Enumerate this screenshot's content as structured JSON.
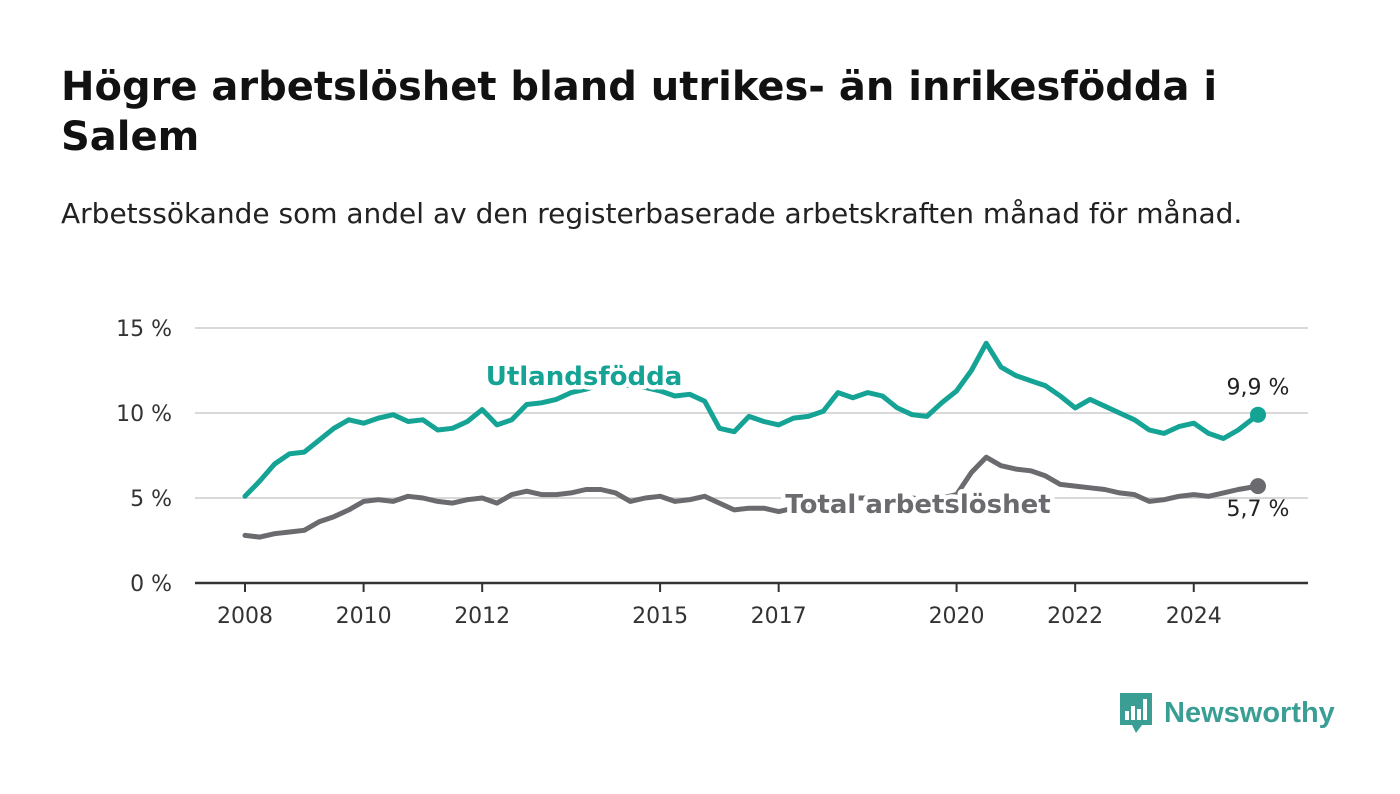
{
  "title": "Högre arbetslöshet bland utrikes- än inrikesfödda i Salem",
  "subtitle": "Arbetssökande som andel av den registerbaserade arbetskraften månad för månad.",
  "brand": {
    "name": "Newsworthy",
    "icon": "bar-chart-logo-icon",
    "color": "#3a9e94"
  },
  "colors": {
    "foreign_born": "#14a394",
    "total": "#6b6a6e",
    "grid": "#d9d9d9",
    "axis": "#333333",
    "text": "#333333"
  },
  "chart_data": {
    "type": "line",
    "xlabel": "",
    "ylabel": "",
    "ylim": [
      0,
      15
    ],
    "xlim": [
      "2007-11",
      "2025-05"
    ],
    "y_ticks": [
      0,
      5,
      10,
      15
    ],
    "y_tick_labels": [
      "0 %",
      "5 %",
      "10 %",
      "15 %"
    ],
    "x_ticks": [
      "2008-01",
      "2010-01",
      "2012-01",
      "2015-01",
      "2017-01",
      "2020-01",
      "2022-01",
      "2024-01"
    ],
    "x_tick_labels": [
      "2008",
      "2010",
      "2012",
      "2015",
      "2017",
      "2020",
      "2022",
      "2024"
    ],
    "grid": true,
    "series": [
      {
        "name": "Utlandsfödda",
        "color": "#14a394",
        "end_label": "9,9 %",
        "points": [
          [
            "2008-01",
            5.1
          ],
          [
            "2008-04",
            6.0
          ],
          [
            "2008-07",
            7.0
          ],
          [
            "2008-10",
            7.6
          ],
          [
            "2009-01",
            7.7
          ],
          [
            "2009-04",
            8.4
          ],
          [
            "2009-07",
            9.1
          ],
          [
            "2009-10",
            9.6
          ],
          [
            "2010-01",
            9.4
          ],
          [
            "2010-04",
            9.7
          ],
          [
            "2010-07",
            9.9
          ],
          [
            "2010-10",
            9.5
          ],
          [
            "2011-01",
            9.6
          ],
          [
            "2011-04",
            9.0
          ],
          [
            "2011-07",
            9.1
          ],
          [
            "2011-10",
            9.5
          ],
          [
            "2012-01",
            10.2
          ],
          [
            "2012-04",
            9.3
          ],
          [
            "2012-07",
            9.6
          ],
          [
            "2012-10",
            10.5
          ],
          [
            "2013-01",
            10.6
          ],
          [
            "2013-04",
            10.8
          ],
          [
            "2013-07",
            11.2
          ],
          [
            "2013-10",
            11.4
          ],
          [
            "2014-01",
            11.7
          ],
          [
            "2014-04",
            11.8
          ],
          [
            "2014-07",
            11.6
          ],
          [
            "2014-10",
            11.5
          ],
          [
            "2015-01",
            11.3
          ],
          [
            "2015-04",
            11.0
          ],
          [
            "2015-07",
            11.1
          ],
          [
            "2015-10",
            10.7
          ],
          [
            "2016-01",
            9.1
          ],
          [
            "2016-04",
            8.9
          ],
          [
            "2016-07",
            9.8
          ],
          [
            "2016-10",
            9.5
          ],
          [
            "2017-01",
            9.3
          ],
          [
            "2017-04",
            9.7
          ],
          [
            "2017-07",
            9.8
          ],
          [
            "2017-10",
            10.1
          ],
          [
            "2018-01",
            11.2
          ],
          [
            "2018-04",
            10.9
          ],
          [
            "2018-07",
            11.2
          ],
          [
            "2018-10",
            11.0
          ],
          [
            "2019-01",
            10.3
          ],
          [
            "2019-04",
            9.9
          ],
          [
            "2019-07",
            9.8
          ],
          [
            "2019-10",
            10.6
          ],
          [
            "2020-01",
            11.3
          ],
          [
            "2020-04",
            12.5
          ],
          [
            "2020-07",
            14.1
          ],
          [
            "2020-10",
            12.7
          ],
          [
            "2021-01",
            12.2
          ],
          [
            "2021-04",
            11.9
          ],
          [
            "2021-07",
            11.6
          ],
          [
            "2021-10",
            11.0
          ],
          [
            "2022-01",
            10.3
          ],
          [
            "2022-04",
            10.8
          ],
          [
            "2022-07",
            10.4
          ],
          [
            "2022-10",
            10.0
          ],
          [
            "2023-01",
            9.6
          ],
          [
            "2023-04",
            9.0
          ],
          [
            "2023-07",
            8.8
          ],
          [
            "2023-10",
            9.2
          ],
          [
            "2024-01",
            9.4
          ],
          [
            "2024-04",
            8.8
          ],
          [
            "2024-07",
            8.5
          ],
          [
            "2024-10",
            9.0
          ],
          [
            "2025-02",
            9.9
          ]
        ]
      },
      {
        "name": "Total arbetslöshet",
        "color": "#6b6a6e",
        "end_label": "5,7 %",
        "points": [
          [
            "2008-01",
            2.8
          ],
          [
            "2008-04",
            2.7
          ],
          [
            "2008-07",
            2.9
          ],
          [
            "2008-10",
            3.0
          ],
          [
            "2009-01",
            3.1
          ],
          [
            "2009-04",
            3.6
          ],
          [
            "2009-07",
            3.9
          ],
          [
            "2009-10",
            4.3
          ],
          [
            "2010-01",
            4.8
          ],
          [
            "2010-04",
            4.9
          ],
          [
            "2010-07",
            4.8
          ],
          [
            "2010-10",
            5.1
          ],
          [
            "2011-01",
            5.0
          ],
          [
            "2011-04",
            4.8
          ],
          [
            "2011-07",
            4.7
          ],
          [
            "2011-10",
            4.9
          ],
          [
            "2012-01",
            5.0
          ],
          [
            "2012-04",
            4.7
          ],
          [
            "2012-07",
            5.2
          ],
          [
            "2012-10",
            5.4
          ],
          [
            "2013-01",
            5.2
          ],
          [
            "2013-04",
            5.2
          ],
          [
            "2013-07",
            5.3
          ],
          [
            "2013-10",
            5.5
          ],
          [
            "2014-01",
            5.5
          ],
          [
            "2014-04",
            5.3
          ],
          [
            "2014-07",
            4.8
          ],
          [
            "2014-10",
            5.0
          ],
          [
            "2015-01",
            5.1
          ],
          [
            "2015-04",
            4.8
          ],
          [
            "2015-07",
            4.9
          ],
          [
            "2015-10",
            5.1
          ],
          [
            "2016-01",
            4.7
          ],
          [
            "2016-04",
            4.3
          ],
          [
            "2016-07",
            4.4
          ],
          [
            "2016-10",
            4.4
          ],
          [
            "2017-01",
            4.2
          ],
          [
            "2017-04",
            4.4
          ],
          [
            "2017-07",
            4.6
          ],
          [
            "2017-10",
            4.8
          ],
          [
            "2018-01",
            4.9
          ],
          [
            "2018-04",
            5.0
          ],
          [
            "2018-07",
            5.0
          ],
          [
            "2018-10",
            4.9
          ],
          [
            "2019-01",
            4.9
          ],
          [
            "2019-04",
            5.0
          ],
          [
            "2019-07",
            4.9
          ],
          [
            "2019-10",
            5.0
          ],
          [
            "2020-01",
            5.2
          ],
          [
            "2020-04",
            6.5
          ],
          [
            "2020-07",
            7.4
          ],
          [
            "2020-10",
            6.9
          ],
          [
            "2021-01",
            6.7
          ],
          [
            "2021-04",
            6.6
          ],
          [
            "2021-07",
            6.3
          ],
          [
            "2021-10",
            5.8
          ],
          [
            "2022-01",
            5.7
          ],
          [
            "2022-04",
            5.6
          ],
          [
            "2022-07",
            5.5
          ],
          [
            "2022-10",
            5.3
          ],
          [
            "2023-01",
            5.2
          ],
          [
            "2023-04",
            4.8
          ],
          [
            "2023-07",
            4.9
          ],
          [
            "2023-10",
            5.1
          ],
          [
            "2024-01",
            5.2
          ],
          [
            "2024-04",
            5.1
          ],
          [
            "2024-07",
            5.3
          ],
          [
            "2024-10",
            5.5
          ],
          [
            "2025-02",
            5.7
          ]
        ]
      }
    ]
  }
}
